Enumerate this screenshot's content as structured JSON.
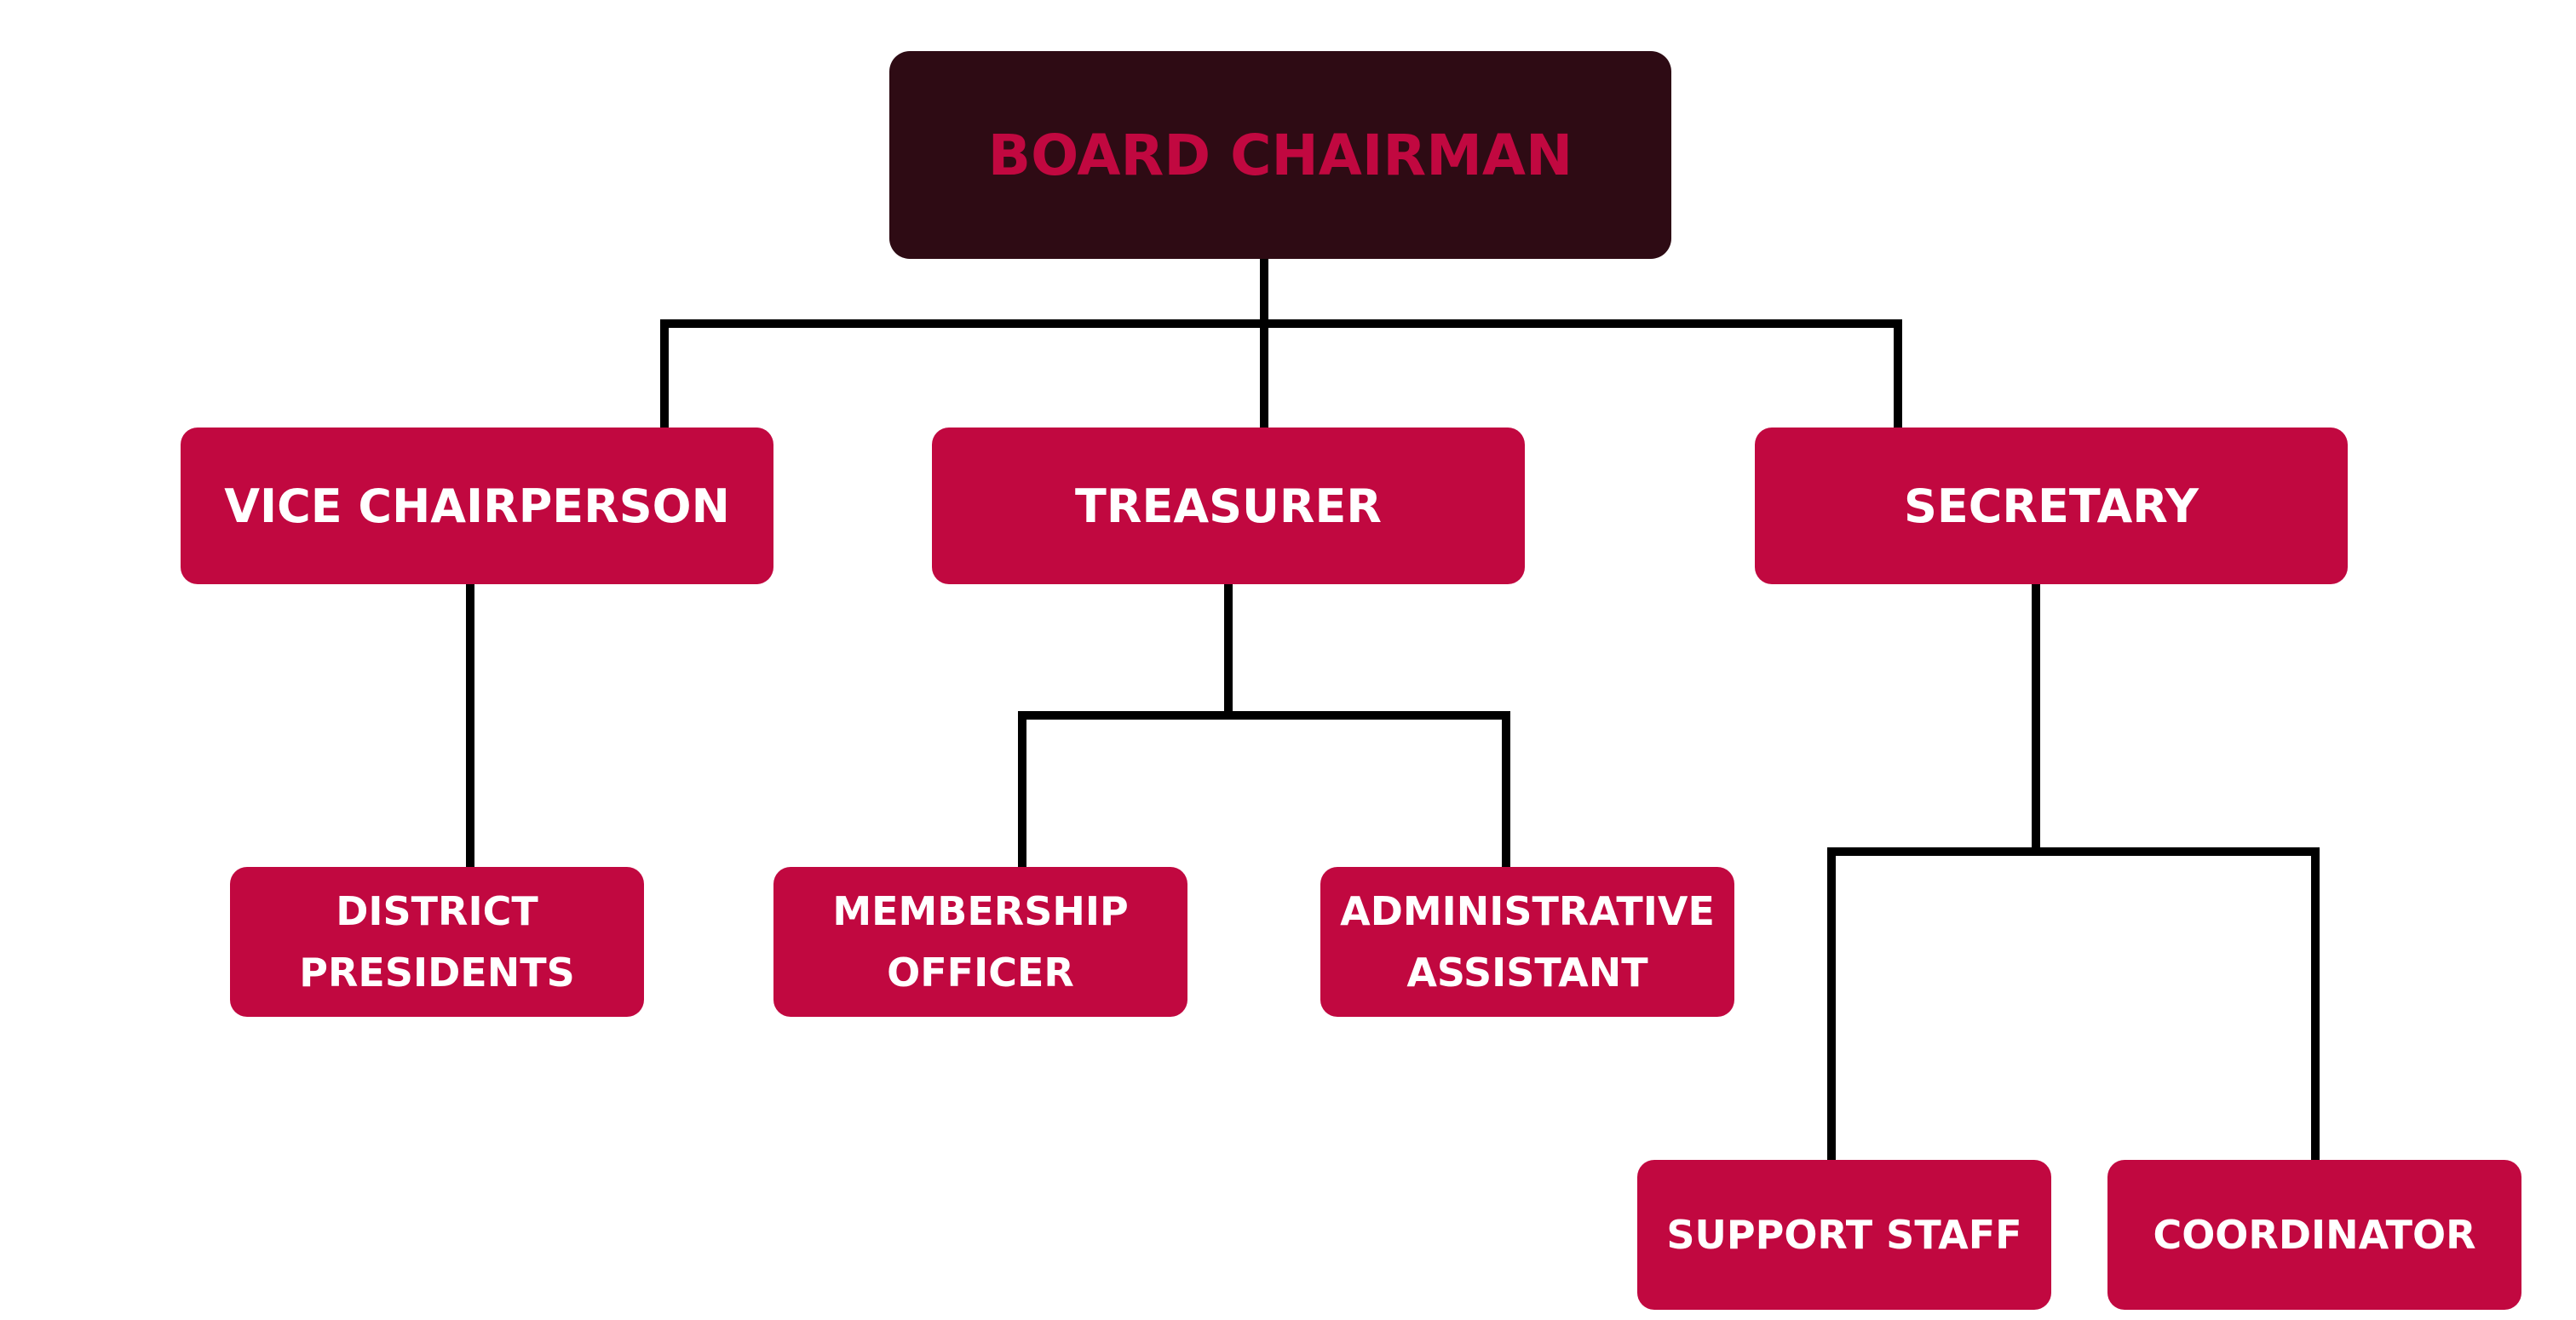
{
  "colors": {
    "root_fill": "#2e0b14",
    "root_text": "#c10840",
    "node_fill": "#c10840",
    "node_text": "#ffffff",
    "connector": "#000000"
  },
  "chart": {
    "root": {
      "label": "BOARD CHAIRMAN"
    },
    "level2": [
      {
        "label": "VICE CHAIRPERSON"
      },
      {
        "label": "TREASURER"
      },
      {
        "label": "SECRETARY"
      }
    ],
    "level3": [
      {
        "line1": "DISTRICT",
        "line2": "PRESIDENTS"
      },
      {
        "line1": "MEMBERSHIP",
        "line2": "OFFICER"
      },
      {
        "line1": "ADMINISTRATIVE",
        "line2": "ASSISTANT"
      }
    ],
    "level4": [
      {
        "label": "SUPPORT STAFF"
      },
      {
        "label": "COORDINATOR"
      }
    ]
  }
}
